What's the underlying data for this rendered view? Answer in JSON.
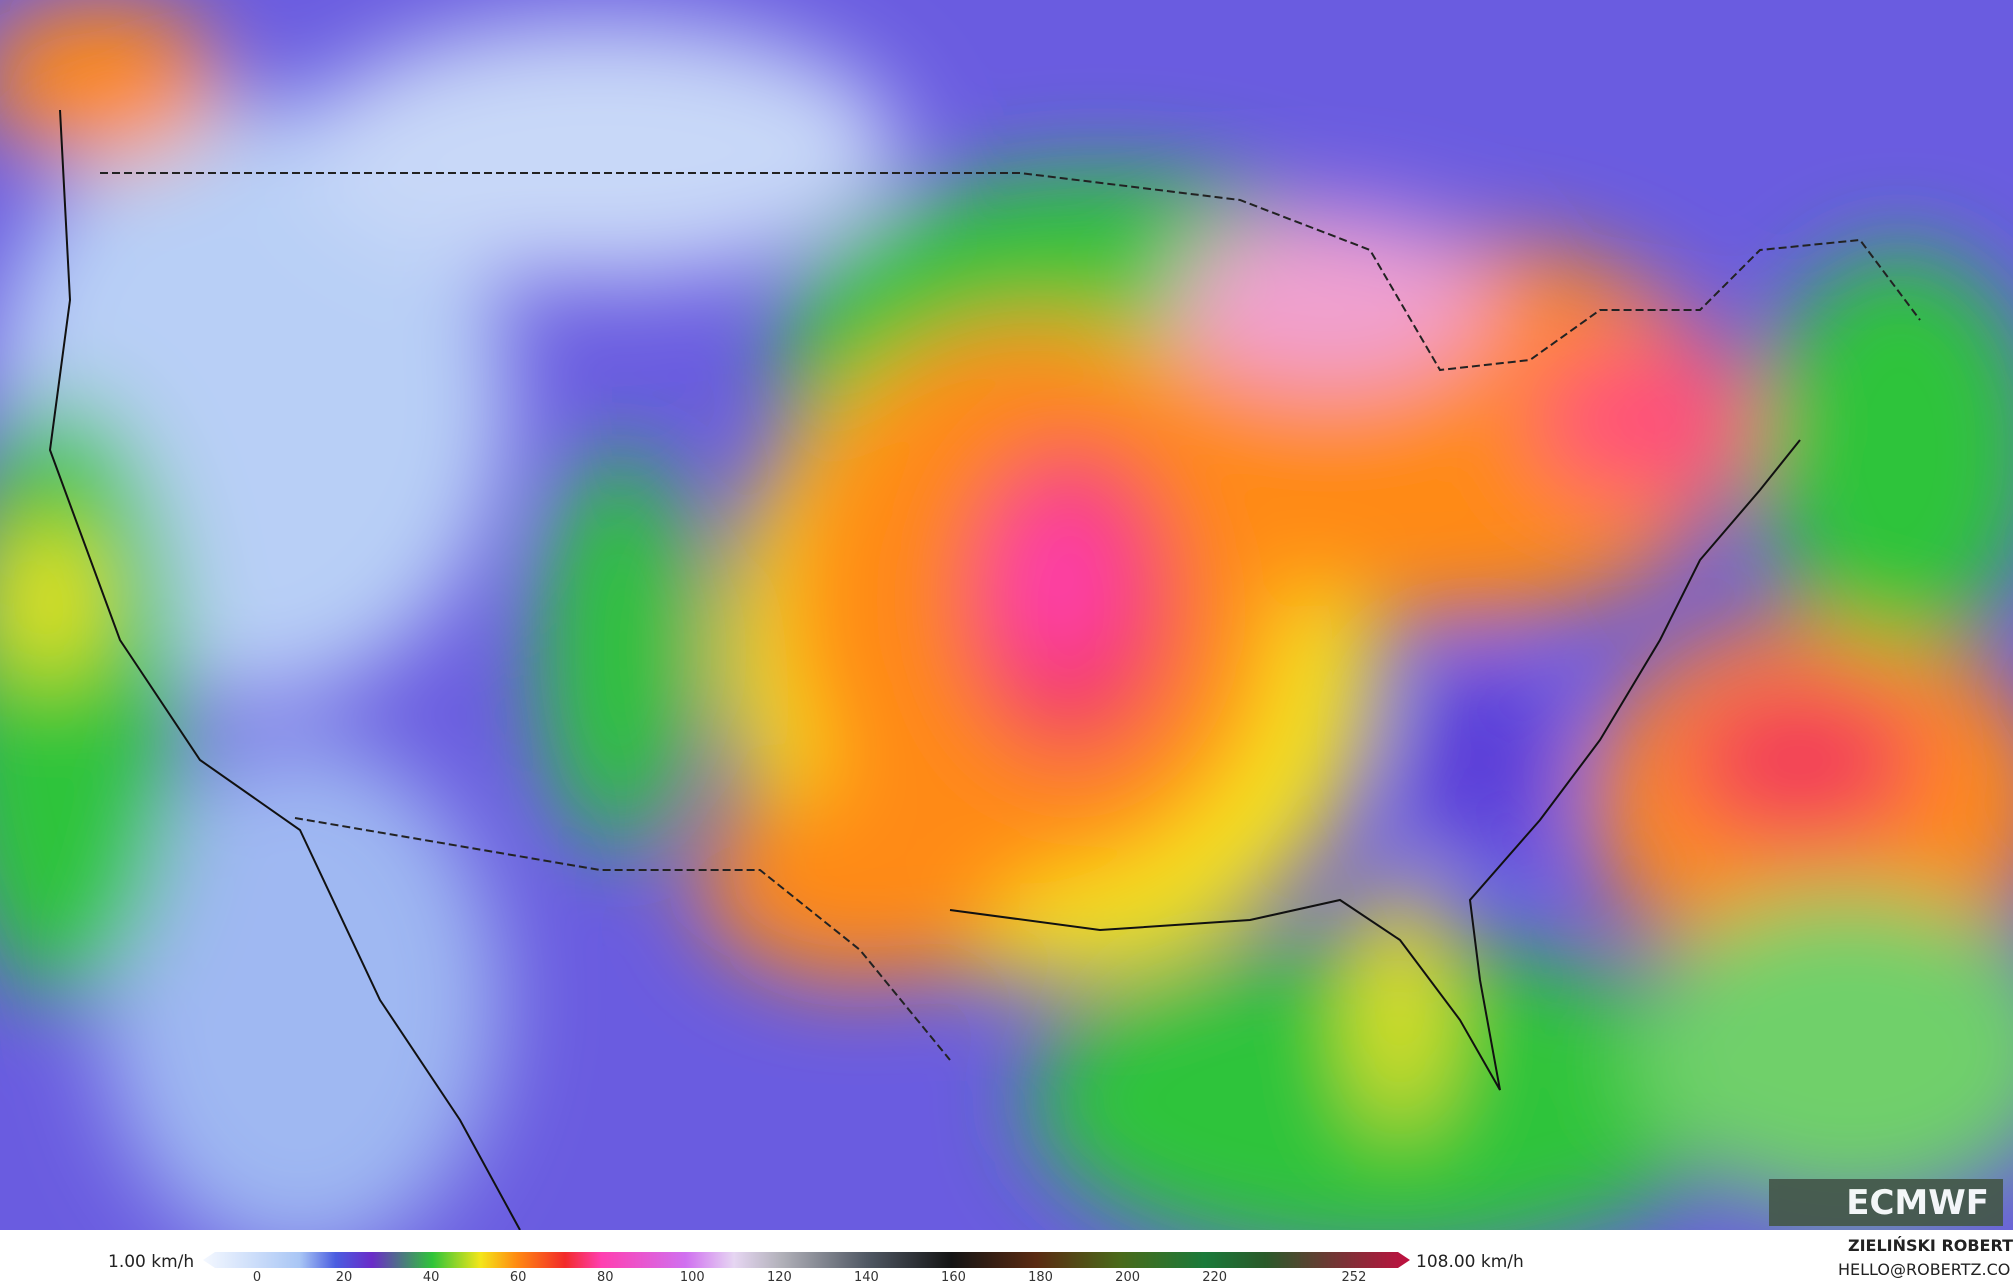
{
  "legend": {
    "min_label": "1.00 km/h",
    "max_label": "108.00 km/h",
    "ticks": [
      0,
      20,
      40,
      60,
      80,
      100,
      120,
      140,
      160,
      180,
      200,
      220,
      252
    ]
  },
  "credit": {
    "author": "ZIELIŃSKI ROBERT",
    "email": "HELLO@ROBERTZ.CO"
  },
  "logo": "ECMWF"
}
